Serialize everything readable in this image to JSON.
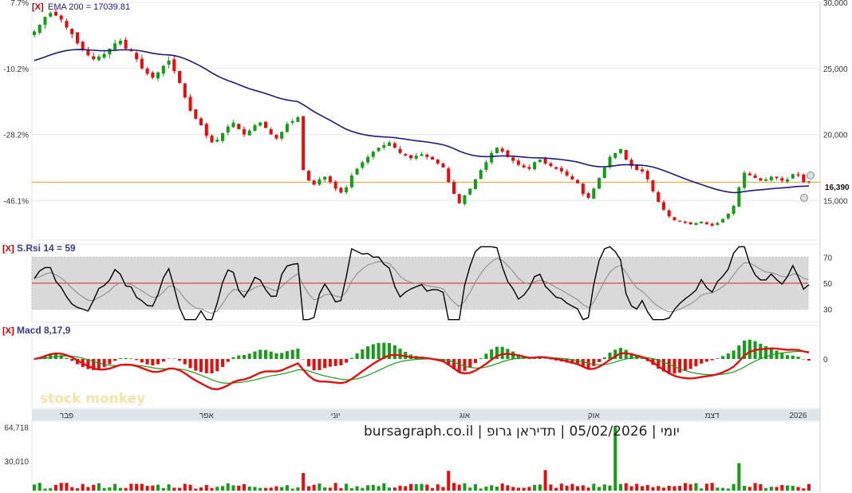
{
  "chart_data": {
    "type": "candlestick",
    "price_panel": {
      "indicator_close": "[X]",
      "ema_label": "EMA 200 = 17039.81",
      "last_price_label": "16,390",
      "last_price": 16390,
      "ylim": [
        12000,
        30000
      ],
      "right_ticks": [
        "30,000",
        "25,000",
        "20,000",
        "15,000"
      ],
      "right_tick_values": [
        30000,
        25000,
        20000,
        15000
      ],
      "left_ticks": [
        "7.7%",
        "-10.2%",
        "-28.2%",
        "-46.1%"
      ],
      "left_tick_values": [
        30000,
        25000,
        20000,
        15000
      ],
      "horizontal_level": 16390,
      "series_close": [
        27800,
        28300,
        28900,
        29200,
        29000,
        28700,
        28100,
        27600,
        26900,
        26400,
        26000,
        25700,
        25900,
        26100,
        26500,
        26900,
        27100,
        26500,
        26300,
        25700,
        25000,
        24600,
        24300,
        24700,
        25200,
        25600,
        24800,
        23900,
        22800,
        21800,
        21200,
        20700,
        19900,
        19400,
        19600,
        20100,
        20600,
        20900,
        20400,
        20000,
        20300,
        20700,
        20900,
        20500,
        20000,
        19700,
        20200,
        20800,
        21000,
        21300,
        17300,
        16500,
        16200,
        16600,
        16800,
        16400,
        15900,
        15600,
        16000,
        16900,
        17400,
        17900,
        18300,
        18700,
        19000,
        19200,
        19400,
        19000,
        18600,
        18400,
        18200,
        18400,
        18500,
        18300,
        18100,
        17800,
        17500,
        16400,
        15500,
        14800,
        15400,
        15900,
        16600,
        17300,
        17900,
        18600,
        19000,
        18700,
        18300,
        18000,
        17700,
        17500,
        17400,
        17900,
        18100,
        17800,
        17600,
        17400,
        17200,
        16900,
        16600,
        16300,
        15500,
        15200,
        15900,
        16700,
        17500,
        18300,
        18600,
        18900,
        18100,
        17600,
        17300,
        17200,
        16600,
        15700,
        14900,
        14300,
        13800,
        13500,
        13400,
        13300,
        13200,
        13300,
        13400,
        13200,
        13100,
        13300,
        13600,
        14000,
        14600,
        16000,
        17100,
        16900,
        16700,
        16500,
        16600,
        16800,
        16700,
        16500,
        16600,
        17000,
        16900,
        16400,
        16390
      ]
    },
    "rsi_panel": {
      "indicator_close": "[X]",
      "title": "S.Rsi 14 = 59",
      "ticks": [
        "70",
        "50",
        "30"
      ],
      "tick_values": [
        70,
        50,
        30
      ],
      "ylim": [
        20,
        80
      ],
      "band": [
        30,
        70
      ],
      "midline": 50
    },
    "macd_panel": {
      "indicator_close": "[X]",
      "title": "Macd 8,17,9",
      "ticks": [
        "0"
      ],
      "tick_values": [
        0
      ]
    },
    "x_axis": {
      "labels": [
        "פבר",
        "אפר",
        "יוני",
        "אוג",
        "אוק",
        "דצמ",
        "2026"
      ],
      "label_positions": [
        6,
        32,
        56,
        80,
        104,
        126,
        142
      ]
    },
    "volume_panel": {
      "ticks": [
        "64,718",
        "30,010"
      ],
      "tick_values": [
        64718,
        30010
      ],
      "ymax": 65000
    },
    "watermark": "stock monkey",
    "footer": "יומי | 05/02/2026 | תדיראן גרופ | bursagraph.co.il",
    "colors": {
      "up": "#1a9a1a",
      "down": "#e01010",
      "ema": "#1b1b7a",
      "level": "#e0a020",
      "macd": "#e01010",
      "signal": "#1a9a1a",
      "rsi": "#000000",
      "band": "#d9d9d9"
    }
  }
}
